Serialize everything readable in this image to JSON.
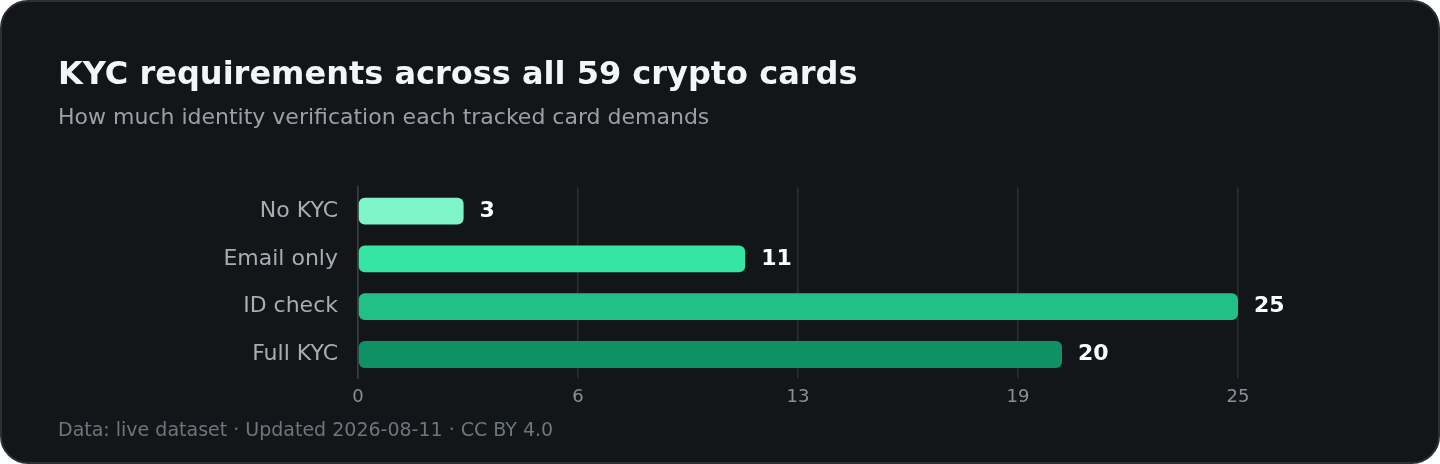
{
  "chart_data": {
    "type": "bar",
    "orientation": "horizontal",
    "title": "KYC requirements across all 59 crypto cards",
    "subtitle": "How much identity verification each tracked card demands",
    "categories": [
      "No KYC",
      "Email only",
      "ID check",
      "Full KYC"
    ],
    "values": [
      3,
      11,
      25,
      20
    ],
    "colors": [
      "#7ef5c8",
      "#34e5a3",
      "#20c087",
      "#0f9065"
    ],
    "xlim": [
      0,
      25
    ],
    "xticks": [
      0,
      {
        "value": 6.25,
        "label": "6"
      },
      {
        "value": 12.5,
        "label": "13"
      },
      {
        "value": 18.75,
        "label": "19"
      },
      25
    ],
    "grid": "x",
    "legend": false,
    "data_labels": true,
    "annotations": [
      "Data: live dataset · Updated 2026-08-11 · CC BY 4.0"
    ]
  }
}
